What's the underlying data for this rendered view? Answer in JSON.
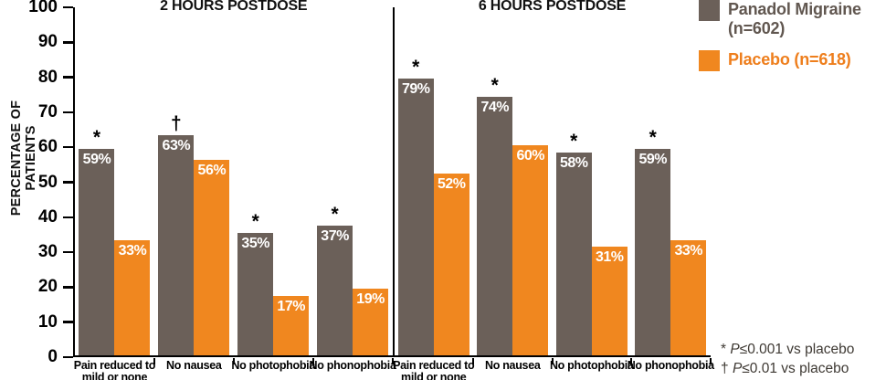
{
  "chart_data": {
    "type": "bar",
    "title": "",
    "ylabel": "PERCENTAGE OF PATIENTS",
    "ylim": [
      0,
      100
    ],
    "ytick_step": 10,
    "yticks": [
      "100",
      "90",
      "80",
      "70",
      "60",
      "50",
      "40",
      "30",
      "20",
      "10",
      "0"
    ],
    "grid": false,
    "legend_position": "top-right",
    "legend": [
      {
        "line1": "Panadol Migraine",
        "line2": "(n=602)",
        "color": "#6B6059",
        "text_color": "#615750"
      },
      {
        "line1": "Placebo (n=618)",
        "line2": "",
        "color": "#F0871F",
        "text_color": "#EE7E1C"
      }
    ],
    "series_names": [
      "Panadol Migraine (n=602)",
      "Placebo (n=618)"
    ],
    "panels": [
      {
        "title": "2 HOURS POSTDOSE",
        "groups": [
          {
            "label_line1": "Pain reduced to",
            "label_line2": "mild or none",
            "panadol": 59,
            "placebo": 33,
            "symbol": "*"
          },
          {
            "label_line1": "No nausea",
            "label_line2": "",
            "panadol": 63,
            "placebo": 56,
            "symbol": "†"
          },
          {
            "label_line1": "No photophobia",
            "label_line2": "",
            "panadol": 35,
            "placebo": 17,
            "symbol": "*"
          },
          {
            "label_line1": "No phonophobia",
            "label_line2": "",
            "panadol": 37,
            "placebo": 19,
            "symbol": "*"
          }
        ]
      },
      {
        "title": "6 HOURS POSTDOSE",
        "groups": [
          {
            "label_line1": "Pain reduced to",
            "label_line2": "mild or none",
            "panadol": 79,
            "placebo": 52,
            "symbol": "*"
          },
          {
            "label_line1": "No nausea",
            "label_line2": "",
            "panadol": 74,
            "placebo": 60,
            "symbol": "*"
          },
          {
            "label_line1": "No photophobia",
            "label_line2": "",
            "panadol": 58,
            "placebo": 31,
            "symbol": "*"
          },
          {
            "label_line1": "No phonophobia",
            "label_line2": "",
            "panadol": 59,
            "placebo": 33,
            "symbol": "*"
          }
        ]
      }
    ],
    "footnotes": [
      {
        "symbol": "*",
        "p": "P",
        "rest": "≤0.001 vs placebo"
      },
      {
        "symbol": "†",
        "p": "P",
        "rest": "≤0.01 vs placebo"
      }
    ]
  }
}
